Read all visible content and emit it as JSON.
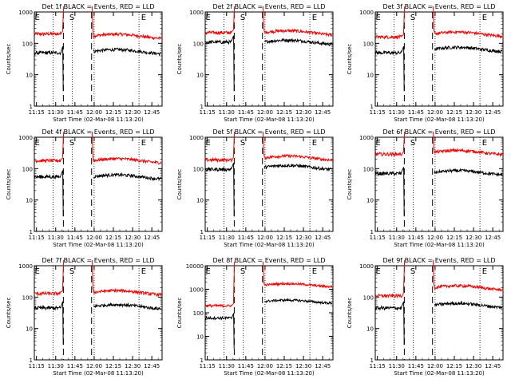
{
  "chart_data": [
    {
      "type": "line",
      "title": "Det 1f BLACK = Events, RED = LLD",
      "xlabel": "Start Time (02-Mar-08 11:13:20)",
      "ylabel": "Counts/sec",
      "yscale": "log",
      "ylim": [
        1,
        1000
      ],
      "x_ticks": [
        "11:15",
        "11:30",
        "11:45",
        "12:00",
        "12:15",
        "12:30",
        "12:45"
      ],
      "y_ticks": [
        "1",
        "10",
        "100",
        "1000"
      ],
      "markers": [
        {
          "label": "E",
          "at": "11:13"
        },
        {
          "label": "S",
          "at": "11:40"
        },
        {
          "label": "E",
          "at": "12:36"
        }
      ],
      "dashed_lines": [
        "11:36",
        "11:58"
      ],
      "dotted_lines": [
        "11:28",
        "11:43",
        "12:00",
        "12:35"
      ],
      "series": [
        {
          "name": "LLD",
          "color": "#ff0000",
          "base": 200,
          "base_after": 170,
          "peak": 1000
        },
        {
          "name": "Events",
          "color": "#000000",
          "base": 50,
          "base_after": 55
        }
      ]
    },
    {
      "type": "line",
      "title": "Det 2f BLACK = Events, RED = LLD",
      "xlabel": "Start Time (02-Mar-08 11:13:20)",
      "ylabel": "Counts/sec",
      "yscale": "log",
      "ylim": [
        1,
        1000
      ],
      "x_ticks": [
        "11:15",
        "11:30",
        "11:45",
        "12:00",
        "12:15",
        "12:30",
        "12:45"
      ],
      "y_ticks": [
        "1",
        "10",
        "100",
        "1000"
      ],
      "markers": [
        {
          "label": "E",
          "at": "11:13"
        },
        {
          "label": "S",
          "at": "11:40"
        },
        {
          "label": "E",
          "at": "12:36"
        }
      ],
      "dashed_lines": [
        "11:36",
        "11:58"
      ],
      "dotted_lines": [
        "11:28",
        "11:43",
        "12:00",
        "12:35"
      ],
      "series": [
        {
          "name": "LLD",
          "color": "#ff0000",
          "base": 220,
          "base_after": 220,
          "peak": 1000
        },
        {
          "name": "Events",
          "color": "#000000",
          "base": 110,
          "base_after": 110
        }
      ]
    },
    {
      "type": "line",
      "title": "Det 3f BLACK = Events, RED = LLD",
      "xlabel": "Start Time (02-Mar-08 11:13:20)",
      "ylabel": "Counts/sec",
      "yscale": "log",
      "ylim": [
        1,
        1000
      ],
      "x_ticks": [
        "11:15",
        "11:30",
        "11:45",
        "12:00",
        "12:15",
        "12:30",
        "12:45"
      ],
      "y_ticks": [
        "1",
        "10",
        "100",
        "1000"
      ],
      "markers": [
        {
          "label": "E",
          "at": "11:13"
        },
        {
          "label": "S",
          "at": "11:40"
        },
        {
          "label": "E",
          "at": "12:36"
        }
      ],
      "dashed_lines": [
        "11:36",
        "11:58"
      ],
      "dotted_lines": [
        "11:28",
        "11:43",
        "12:00",
        "12:35"
      ],
      "series": [
        {
          "name": "LLD",
          "color": "#ff0000",
          "base": 160,
          "base_after": 200,
          "peak": 1000
        },
        {
          "name": "Events",
          "color": "#000000",
          "base": 50,
          "base_after": 65
        }
      ]
    },
    {
      "type": "line",
      "title": "Det 4f BLACK = Events, RED = LLD",
      "xlabel": "Start Time (02-Mar-08 11:13:20)",
      "ylabel": "Counts/sec",
      "yscale": "log",
      "ylim": [
        1,
        1000
      ],
      "x_ticks": [
        "11:15",
        "11:30",
        "11:45",
        "12:00",
        "12:15",
        "12:30",
        "12:45"
      ],
      "y_ticks": [
        "1",
        "10",
        "100",
        "1000"
      ],
      "markers": [
        {
          "label": "E",
          "at": "11:13"
        },
        {
          "label": "S",
          "at": "11:40"
        },
        {
          "label": "E",
          "at": "12:36"
        }
      ],
      "dashed_lines": [
        "11:36",
        "11:58"
      ],
      "dotted_lines": [
        "11:28",
        "11:43",
        "12:00",
        "12:35"
      ],
      "series": [
        {
          "name": "LLD",
          "color": "#ff0000",
          "base": 180,
          "base_after": 180,
          "peak": 1000
        },
        {
          "name": "Events",
          "color": "#000000",
          "base": 55,
          "base_after": 55
        }
      ]
    },
    {
      "type": "line",
      "title": "Det 5f BLACK = Events, RED = LLD",
      "xlabel": "Start Time (02-Mar-08 11:13:20)",
      "ylabel": "Counts/sec",
      "yscale": "log",
      "ylim": [
        1,
        1000
      ],
      "x_ticks": [
        "11:15",
        "11:30",
        "11:45",
        "12:00",
        "12:15",
        "12:30",
        "12:45"
      ],
      "y_ticks": [
        "1",
        "10",
        "100",
        "1000"
      ],
      "markers": [
        {
          "label": "E",
          "at": "11:13"
        },
        {
          "label": "S",
          "at": "11:40"
        },
        {
          "label": "E",
          "at": "12:36"
        }
      ],
      "dashed_lines": [
        "11:36",
        "11:58"
      ],
      "dotted_lines": [
        "11:28",
        "11:43",
        "12:00",
        "12:35"
      ],
      "series": [
        {
          "name": "LLD",
          "color": "#ff0000",
          "base": 190,
          "base_after": 220,
          "peak": 1000
        },
        {
          "name": "Events",
          "color": "#000000",
          "base": 95,
          "base_after": 110
        }
      ]
    },
    {
      "type": "line",
      "title": "Det 6f BLACK = Events, RED = LLD",
      "xlabel": "Start Time (02-Mar-08 11:13:20)",
      "ylabel": "Counts/sec",
      "yscale": "log",
      "ylim": [
        1,
        1000
      ],
      "x_ticks": [
        "11:15",
        "11:30",
        "11:45",
        "12:00",
        "12:15",
        "12:30",
        "12:45"
      ],
      "y_ticks": [
        "1",
        "10",
        "100",
        "1000"
      ],
      "markers": [
        {
          "label": "E",
          "at": "11:13"
        },
        {
          "label": "S",
          "at": "11:40"
        },
        {
          "label": "E",
          "at": "12:36"
        }
      ],
      "dashed_lines": [
        "11:36",
        "11:58"
      ],
      "dotted_lines": [
        "11:28",
        "11:43",
        "12:00",
        "12:35"
      ],
      "series": [
        {
          "name": "LLD",
          "color": "#ff0000",
          "base": 290,
          "base_after": 330,
          "peak": 1000
        },
        {
          "name": "Events",
          "color": "#000000",
          "base": 70,
          "base_after": 75
        }
      ]
    },
    {
      "type": "line",
      "title": "Det 7f BLACK = Events, RED = LLD",
      "xlabel": "Start Time (02-Mar-08 11:13:20)",
      "ylabel": "Counts/sec",
      "yscale": "log",
      "ylim": [
        1,
        1000
      ],
      "x_ticks": [
        "11:15",
        "11:30",
        "11:45",
        "12:00",
        "12:15",
        "12:30",
        "12:45"
      ],
      "y_ticks": [
        "1",
        "10",
        "100",
        "1000"
      ],
      "markers": [
        {
          "label": "E",
          "at": "11:13"
        },
        {
          "label": "S",
          "at": "11:40"
        },
        {
          "label": "E",
          "at": "12:36"
        }
      ],
      "dashed_lines": [
        "11:36",
        "11:58"
      ],
      "dotted_lines": [
        "11:28",
        "11:43",
        "12:00",
        "12:35"
      ],
      "series": [
        {
          "name": "LLD",
          "color": "#ff0000",
          "base": 130,
          "base_after": 140,
          "peak": 1000
        },
        {
          "name": "Events",
          "color": "#000000",
          "base": 45,
          "base_after": 50
        }
      ]
    },
    {
      "type": "line",
      "title": "Det 8f BLACK = Events, RED = LLD",
      "xlabel": "Start Time (02-Mar-08 11:13:20)",
      "ylabel": "Counts/sec",
      "yscale": "log",
      "ylim": [
        1,
        10000
      ],
      "x_ticks": [
        "11:15",
        "11:30",
        "11:45",
        "12:00",
        "12:15",
        "12:30",
        "12:45"
      ],
      "y_ticks": [
        "1",
        "10",
        "100",
        "1000",
        "10000"
      ],
      "markers": [
        {
          "label": "E",
          "at": "11:13"
        },
        {
          "label": "S",
          "at": "11:40"
        },
        {
          "label": "E",
          "at": "12:36"
        }
      ],
      "dashed_lines": [
        "11:36",
        "11:58"
      ],
      "dotted_lines": [
        "11:28",
        "11:43",
        "12:00",
        "12:35"
      ],
      "series": [
        {
          "name": "LLD",
          "color": "#ff0000",
          "base": 200,
          "base_after": 1500,
          "peak": 10000
        },
        {
          "name": "Events",
          "color": "#000000",
          "base": 60,
          "base_after": 300
        }
      ]
    },
    {
      "type": "line",
      "title": "Det 9f BLACK = Events, RED = LLD",
      "xlabel": "Start Time (02-Mar-08 11:13:20)",
      "ylabel": "Counts/sec",
      "yscale": "log",
      "ylim": [
        1,
        1000
      ],
      "x_ticks": [
        "11:15",
        "11:30",
        "11:45",
        "12:00",
        "12:15",
        "12:30",
        "12:45"
      ],
      "y_ticks": [
        "1",
        "10",
        "100",
        "1000"
      ],
      "markers": [
        {
          "label": "E",
          "at": "11:13"
        },
        {
          "label": "S",
          "at": "11:40"
        },
        {
          "label": "E",
          "at": "12:36"
        }
      ],
      "dashed_lines": [
        "11:36",
        "11:58"
      ],
      "dotted_lines": [
        "11:28",
        "11:43",
        "12:00",
        "12:35"
      ],
      "series": [
        {
          "name": "LLD",
          "color": "#ff0000",
          "base": 110,
          "base_after": 200,
          "peak": 1000
        },
        {
          "name": "Events",
          "color": "#000000",
          "base": 45,
          "base_after": 55
        }
      ]
    }
  ]
}
